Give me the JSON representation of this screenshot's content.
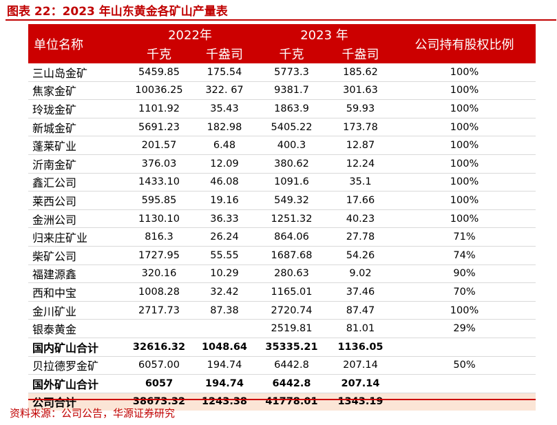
{
  "title": "图表 22：2023 年山东黄金各矿山产量表",
  "header": {
    "name_col": "单位名称",
    "year_2022": "2022年",
    "year_2023": "2023 年",
    "ownership": "公司持有股权比例",
    "unit_kg": "千克",
    "unit_koz": "千盎司"
  },
  "rows": [
    {
      "name": "三山岛金矿",
      "kg2022": "5459.85",
      "koz2022": "175.54",
      "kg2023": "5773.3",
      "koz2023": "185.62",
      "pct": "100%"
    },
    {
      "name": "焦家金矿",
      "kg2022": "10036.25",
      "koz2022": "322. 67",
      "kg2023": "9381.7",
      "koz2023": "301.63",
      "pct": "100%"
    },
    {
      "name": "玲珑金矿",
      "kg2022": "1101.92",
      "koz2022": "35.43",
      "kg2023": "1863.9",
      "koz2023": "59.93",
      "pct": "100%"
    },
    {
      "name": "新城金矿",
      "kg2022": "5691.23",
      "koz2022": "182.98",
      "kg2023": "5405.22",
      "koz2023": "173.78",
      "pct": "100%"
    },
    {
      "name": "蓬莱矿业",
      "kg2022": "201.57",
      "koz2022": "6.48",
      "kg2023": "400.3",
      "koz2023": "12.87",
      "pct": "100%"
    },
    {
      "name": "沂南金矿",
      "kg2022": "376.03",
      "koz2022": "12.09",
      "kg2023": "380.62",
      "koz2023": "12.24",
      "pct": "100%"
    },
    {
      "name": "鑫汇公司",
      "kg2022": "1433.10",
      "koz2022": "46.08",
      "kg2023": "1091.6",
      "koz2023": "35.1",
      "pct": "100%"
    },
    {
      "name": "莱西公司",
      "kg2022": "595.85",
      "koz2022": "19.16",
      "kg2023": "549.32",
      "koz2023": "17.66",
      "pct": "100%"
    },
    {
      "name": "金洲公司",
      "kg2022": "1130.10",
      "koz2022": "36.33",
      "kg2023": "1251.32",
      "koz2023": "40.23",
      "pct": "100%"
    },
    {
      "name": "归来庄矿业",
      "kg2022": "816.3",
      "koz2022": "26.24",
      "kg2023": "864.06",
      "koz2023": "27.78",
      "pct": "71%"
    },
    {
      "name": "柴矿公司",
      "kg2022": "1727.95",
      "koz2022": "55.55",
      "kg2023": "1687.68",
      "koz2023": "54.26",
      "pct": "74%"
    },
    {
      "name": "福建源鑫",
      "kg2022": "320.16",
      "koz2022": "10.29",
      "kg2023": "280.63",
      "koz2023": "9.02",
      "pct": "90%"
    },
    {
      "name": "西和中宝",
      "kg2022": "1008.28",
      "koz2022": "32.42",
      "kg2023": "1165.01",
      "koz2023": "37.46",
      "pct": "70%"
    },
    {
      "name": "金川矿业",
      "kg2022": "2717.73",
      "koz2022": "87.38",
      "kg2023": "2720.74",
      "koz2023": "87.47",
      "pct": "100%"
    },
    {
      "name": "银泰黄金",
      "kg2022": "",
      "koz2022": "",
      "kg2023": "2519.81",
      "koz2023": "81.01",
      "pct": "29%"
    },
    {
      "name": "国内矿山合计",
      "kg2022": "32616.32",
      "koz2022": "1048.64",
      "kg2023": "35335.21",
      "koz2023": "1136.05",
      "pct": "",
      "style": "bold"
    },
    {
      "name": "贝拉德罗金矿",
      "kg2022": "6057.00",
      "koz2022": "194.74",
      "kg2023": "6442.8",
      "koz2023": "207.14",
      "pct": "50%"
    },
    {
      "name": "国外矿山合计",
      "kg2022": "6057",
      "koz2022": "194.74",
      "kg2023": "6442.8",
      "koz2023": "207.14",
      "pct": "",
      "style": "bold"
    },
    {
      "name": "公司合计",
      "kg2022": "38673.32",
      "koz2022": "1243.38",
      "kg2023": "41778.01",
      "koz2023": "1343.19",
      "pct": "",
      "style": "total"
    }
  ],
  "source": "资料来源：公司公告，华源证券研究"
}
